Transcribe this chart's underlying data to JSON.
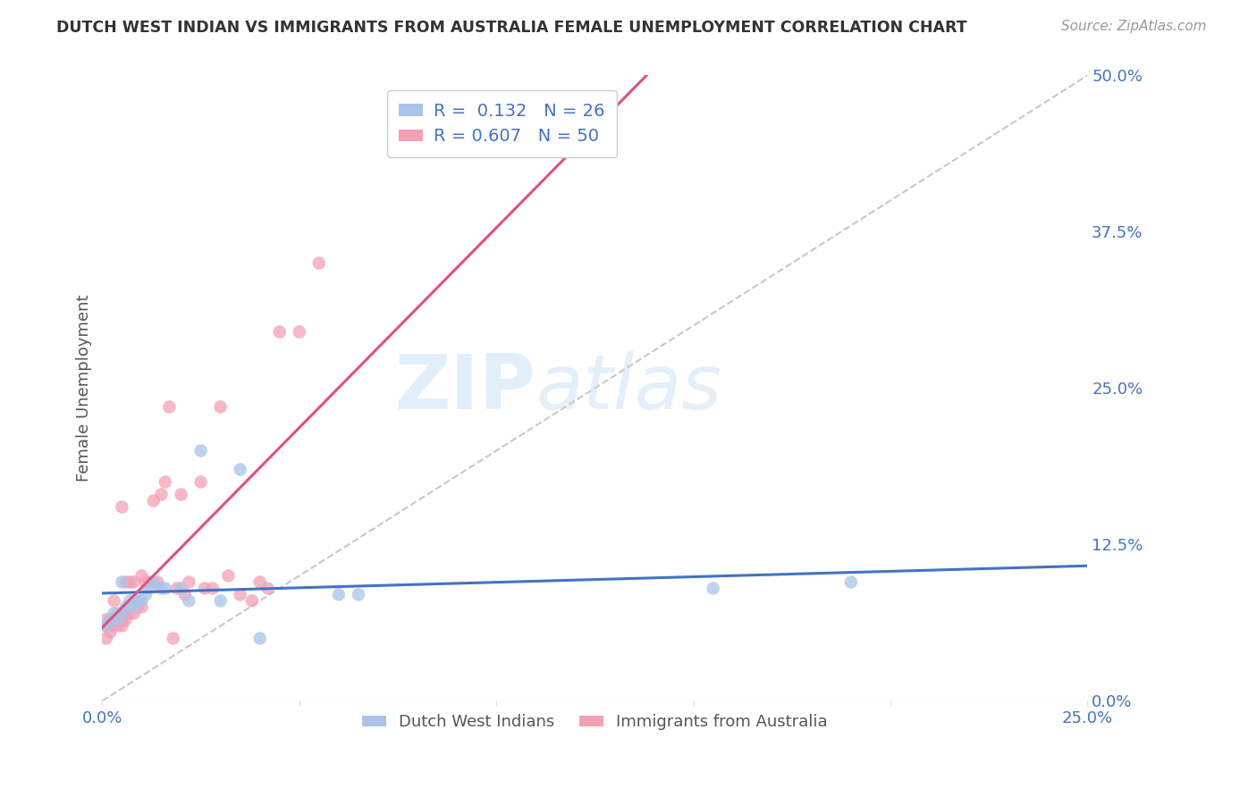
{
  "title": "DUTCH WEST INDIAN VS IMMIGRANTS FROM AUSTRALIA FEMALE UNEMPLOYMENT CORRELATION CHART",
  "source": "Source: ZipAtlas.com",
  "ylabel": "Female Unemployment",
  "x_min": 0.0,
  "x_max": 0.25,
  "y_min": 0.0,
  "y_max": 0.5,
  "x_ticks": [
    0.0,
    0.05,
    0.1,
    0.15,
    0.2,
    0.25
  ],
  "x_tick_labels": [
    "0.0%",
    "",
    "",
    "",
    "",
    "25.0%"
  ],
  "y_tick_labels": [
    "50.0%",
    "37.5%",
    "25.0%",
    "12.5%",
    "0.0%"
  ],
  "y_ticks": [
    0.5,
    0.375,
    0.25,
    0.125,
    0.0
  ],
  "blue_R": 0.132,
  "blue_N": 26,
  "pink_R": 0.607,
  "pink_N": 50,
  "blue_color": "#aac4e8",
  "pink_color": "#f4a0b5",
  "blue_label": "Dutch West Indians",
  "pink_label": "Immigrants from Australia",
  "diagonal_line_color": "#c8c8c8",
  "blue_x": [
    0.001,
    0.002,
    0.003,
    0.004,
    0.005,
    0.005,
    0.006,
    0.007,
    0.008,
    0.009,
    0.01,
    0.011,
    0.012,
    0.013,
    0.015,
    0.016,
    0.02,
    0.022,
    0.025,
    0.03,
    0.035,
    0.04,
    0.06,
    0.065,
    0.155,
    0.19
  ],
  "blue_y": [
    0.06,
    0.065,
    0.07,
    0.065,
    0.07,
    0.095,
    0.075,
    0.08,
    0.075,
    0.08,
    0.08,
    0.085,
    0.09,
    0.095,
    0.09,
    0.09,
    0.09,
    0.08,
    0.2,
    0.08,
    0.185,
    0.05,
    0.085,
    0.085,
    0.09,
    0.095
  ],
  "pink_x": [
    0.001,
    0.001,
    0.001,
    0.002,
    0.002,
    0.002,
    0.003,
    0.003,
    0.003,
    0.004,
    0.004,
    0.004,
    0.005,
    0.005,
    0.005,
    0.006,
    0.006,
    0.006,
    0.007,
    0.007,
    0.008,
    0.008,
    0.009,
    0.009,
    0.01,
    0.01,
    0.011,
    0.012,
    0.013,
    0.014,
    0.015,
    0.016,
    0.017,
    0.018,
    0.019,
    0.02,
    0.021,
    0.022,
    0.025,
    0.026,
    0.028,
    0.03,
    0.032,
    0.035,
    0.038,
    0.04,
    0.042,
    0.045,
    0.05,
    0.055
  ],
  "pink_y": [
    0.05,
    0.06,
    0.065,
    0.055,
    0.06,
    0.065,
    0.06,
    0.065,
    0.08,
    0.06,
    0.065,
    0.07,
    0.06,
    0.065,
    0.155,
    0.065,
    0.07,
    0.095,
    0.07,
    0.095,
    0.07,
    0.095,
    0.075,
    0.08,
    0.075,
    0.1,
    0.095,
    0.095,
    0.16,
    0.095,
    0.165,
    0.175,
    0.235,
    0.05,
    0.09,
    0.165,
    0.085,
    0.095,
    0.175,
    0.09,
    0.09,
    0.235,
    0.1,
    0.085,
    0.08,
    0.095,
    0.09,
    0.295,
    0.295,
    0.35
  ],
  "watermark_zip": "ZIP",
  "watermark_atlas": "atlas",
  "background_color": "#ffffff",
  "grid_color": "#dddddd",
  "title_color": "#333333",
  "axis_label_color": "#555555",
  "tick_label_color": "#4472c4",
  "blue_line_color": "#4472c4",
  "pink_line_color": "#e05080",
  "legend_edge_color": "#cccccc"
}
